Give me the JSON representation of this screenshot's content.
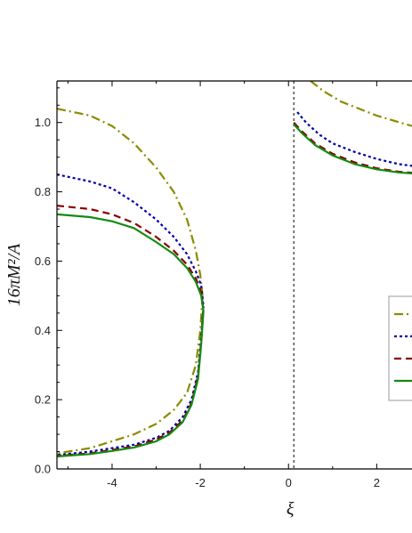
{
  "chart_data": {
    "type": "line",
    "xlabel": "ξ",
    "ylabel": "16πM²/A",
    "xlim": [
      -5.25,
      2.8
    ],
    "ylim": [
      0.0,
      1.12
    ],
    "xticks": [
      -4,
      -2,
      0,
      2
    ],
    "yticks": [
      0.0,
      0.2,
      0.4,
      0.6,
      0.8,
      1.0
    ],
    "vertical_reference_line": {
      "x": 0.12,
      "style": "dashed",
      "color": "#000000"
    },
    "legend_placement": "right",
    "series": [
      {
        "color": "#8b8b00",
        "dash": "dash-dot",
        "branches": [
          {
            "x": [
              -5.25,
              -4.5,
              -4.0,
              -3.5,
              -3.0,
              -2.6,
              -2.3,
              -2.1,
              -2.0,
              -1.95
            ],
            "y": [
              1.04,
              1.02,
              0.99,
              0.94,
              0.87,
              0.8,
              0.72,
              0.63,
              0.56,
              0.5
            ]
          },
          {
            "x": [
              -1.95,
              -2.0,
              -2.1,
              -2.3,
              -2.6,
              -3.0,
              -3.5,
              -4.0,
              -4.5,
              -5.25
            ],
            "y": [
              0.5,
              0.4,
              0.3,
              0.22,
              0.17,
              0.13,
              0.1,
              0.08,
              0.06,
              0.045
            ]
          },
          {
            "x": [
              0.5,
              0.8,
              1.2,
              1.6,
              2.0,
              2.4,
              2.8
            ],
            "y": [
              1.12,
              1.09,
              1.06,
              1.04,
              1.02,
              1.005,
              0.99
            ]
          }
        ]
      },
      {
        "color": "#0000aa",
        "dash": "dotted",
        "branches": [
          {
            "x": [
              -5.25,
              -4.5,
              -4.0,
              -3.5,
              -3.0,
              -2.6,
              -2.3,
              -2.1,
              -1.98,
              -1.93
            ],
            "y": [
              0.85,
              0.83,
              0.81,
              0.77,
              0.72,
              0.67,
              0.62,
              0.57,
              0.53,
              0.47
            ]
          },
          {
            "x": [
              -1.93,
              -1.98,
              -2.05,
              -2.2,
              -2.4,
              -2.7,
              -3.0,
              -3.5,
              -4.0,
              -4.5,
              -5.25
            ],
            "y": [
              0.47,
              0.38,
              0.28,
              0.2,
              0.15,
              0.11,
              0.09,
              0.07,
              0.06,
              0.05,
              0.04
            ]
          },
          {
            "x": [
              0.2,
              0.4,
              0.7,
              1.0,
              1.5,
              2.0,
              2.5,
              2.8
            ],
            "y": [
              1.03,
              1.0,
              0.965,
              0.94,
              0.915,
              0.895,
              0.88,
              0.875
            ]
          }
        ]
      },
      {
        "color": "#8b0000",
        "dash": "dashed",
        "branches": [
          {
            "x": [
              -5.25,
              -4.5,
              -4.0,
              -3.5,
              -3.0,
              -2.6,
              -2.3,
              -2.1,
              -1.98,
              -1.93
            ],
            "y": [
              0.76,
              0.75,
              0.735,
              0.71,
              0.67,
              0.63,
              0.59,
              0.55,
              0.51,
              0.46
            ]
          },
          {
            "x": [
              -1.93,
              -1.98,
              -2.05,
              -2.2,
              -2.4,
              -2.7,
              -3.0,
              -3.5,
              -4.0,
              -4.5,
              -5.25
            ],
            "y": [
              0.46,
              0.37,
              0.27,
              0.19,
              0.14,
              0.105,
              0.085,
              0.065,
              0.055,
              0.045,
              0.038
            ]
          },
          {
            "x": [
              0.12,
              0.3,
              0.6,
              1.0,
              1.5,
              2.0,
              2.5,
              2.8
            ],
            "y": [
              1.0,
              0.975,
              0.94,
              0.91,
              0.885,
              0.868,
              0.858,
              0.855
            ]
          }
        ]
      },
      {
        "color": "#138b13",
        "dash": "solid",
        "branches": [
          {
            "x": [
              -5.25,
              -4.5,
              -4.0,
              -3.5,
              -3.0,
              -2.6,
              -2.3,
              -2.1,
              -1.98,
              -1.93
            ],
            "y": [
              0.735,
              0.727,
              0.715,
              0.695,
              0.655,
              0.62,
              0.58,
              0.54,
              0.5,
              0.455
            ]
          },
          {
            "x": [
              -1.93,
              -1.98,
              -2.05,
              -2.2,
              -2.4,
              -2.7,
              -3.0,
              -3.5,
              -4.0,
              -4.5,
              -5.25
            ],
            "y": [
              0.455,
              0.36,
              0.26,
              0.185,
              0.135,
              0.1,
              0.08,
              0.062,
              0.052,
              0.043,
              0.036
            ]
          },
          {
            "x": [
              0.12,
              0.3,
              0.6,
              1.0,
              1.5,
              2.0,
              2.5,
              2.8
            ],
            "y": [
              0.995,
              0.97,
              0.935,
              0.905,
              0.88,
              0.865,
              0.856,
              0.853
            ]
          }
        ]
      }
    ]
  }
}
